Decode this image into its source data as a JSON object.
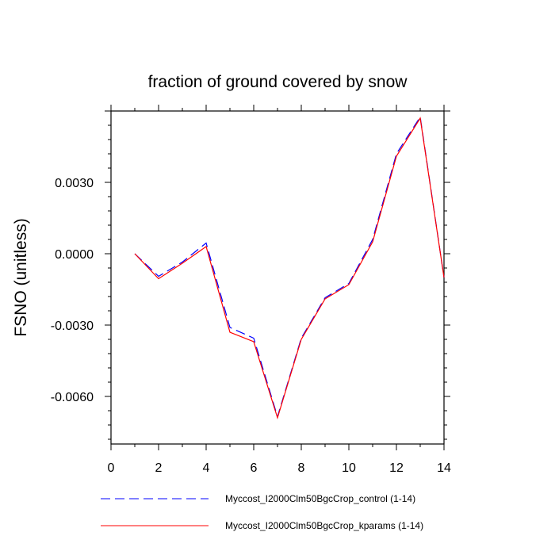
{
  "chart_data": {
    "type": "line",
    "title": "fraction of ground covered by snow",
    "xlabel": "",
    "ylabel": "FSNO  (unitless)",
    "xlim": [
      0,
      14
    ],
    "ylim": [
      -0.008,
      0.006
    ],
    "x_ticks": [
      0,
      2,
      4,
      6,
      8,
      10,
      12,
      14
    ],
    "x_tick_labels": [
      "0",
      "2",
      "4",
      "6",
      "8",
      "10",
      "12",
      "14"
    ],
    "y_ticks": [
      0.003,
      0.0,
      -0.003,
      -0.006
    ],
    "y_tick_labels": [
      "0.0030",
      "0.0000",
      "-0.0030",
      "-0.0060"
    ],
    "x": [
      1,
      2,
      3,
      4,
      5,
      6,
      7,
      8,
      9,
      10,
      11,
      12,
      13,
      14
    ],
    "series": [
      {
        "name": "Myccost_I2000Clm50BgcCrop_control (1-14)",
        "color": "#0000ff",
        "dash": "dashed",
        "values": [
          0.0,
          -0.00095,
          -0.00035,
          0.00045,
          -0.0031,
          -0.00355,
          -0.00685,
          -0.00355,
          -0.00185,
          -0.00125,
          0.0006,
          0.0042,
          0.00575,
          -0.001
        ]
      },
      {
        "name": "Myccost_I2000Clm50BgcCrop_kparams (1-14)",
        "color": "#ff0000",
        "dash": "solid",
        "values": [
          0.0,
          -0.00105,
          -0.0004,
          0.0003,
          -0.0033,
          -0.0037,
          -0.0069,
          -0.0036,
          -0.0019,
          -0.0013,
          0.0005,
          0.0041,
          0.0057,
          -0.001
        ]
      }
    ],
    "grid": false,
    "legend_position": "bottom"
  }
}
